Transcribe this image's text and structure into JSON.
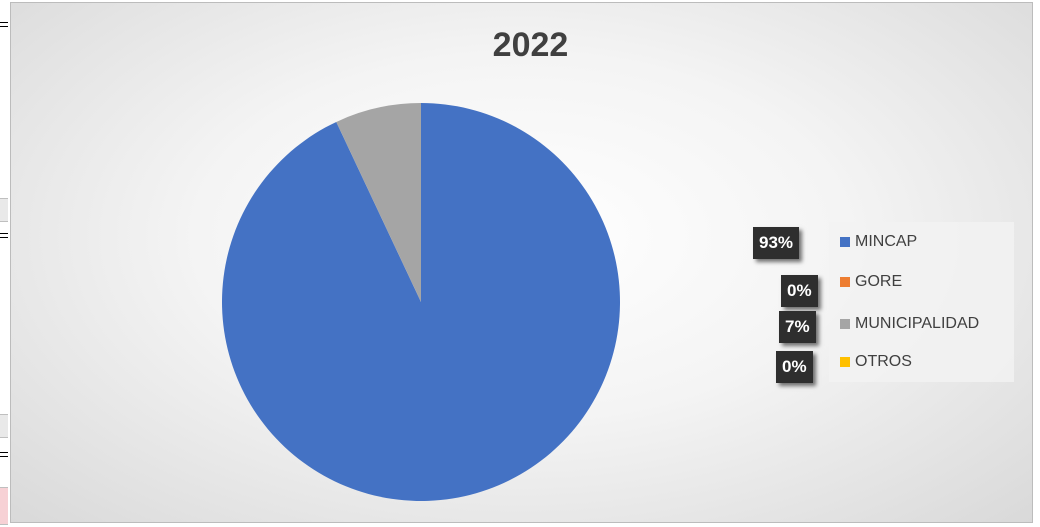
{
  "chart_data": {
    "type": "pie",
    "title": "2022",
    "categories": [
      "MINCAP",
      "GORE",
      "MUNICIPALIDAD",
      "OTROS"
    ],
    "values": [
      93,
      0,
      7,
      0
    ],
    "data_labels": [
      "93%",
      "0%",
      "7%",
      "0%"
    ],
    "colors": [
      "#4472C4",
      "#ED7D31",
      "#A5A5A5",
      "#FFC000"
    ],
    "legend_position": "right"
  }
}
